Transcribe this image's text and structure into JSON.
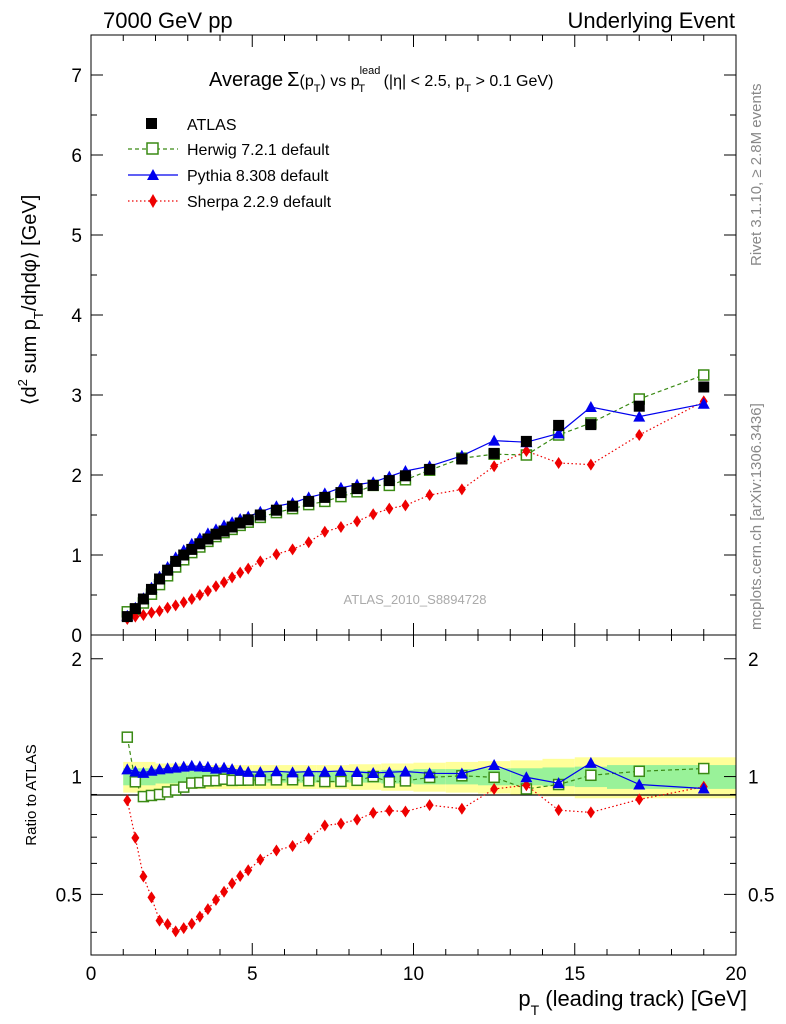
{
  "header": {
    "left": "7000 GeV pp",
    "right": "Underlying Event"
  },
  "side_labels": {
    "rivet": "Rivet 3.1.10, ≥ 2.8M events",
    "mcplots": "mcplots.cern.ch [arXiv:1306.3436]"
  },
  "watermark": "ATLAS_2010_S8894728",
  "title": {
    "prefix": "Average",
    "sigma": "Σ",
    "arg": "(p",
    "arg_sub": "T",
    "arg_close": ")",
    "vs": " vs p",
    "vs_sup": "lead",
    "vs_sub": "T",
    "cuts1": " (|η| < 2.5, p",
    "cuts_sub": "T",
    "cuts2": " > 0.1 GeV)"
  },
  "ylabel_main": {
    "a": "⟨d",
    "sup": "2",
    "b": " sum p",
    "sub": "T",
    "c": "/dηdφ⟩ [GeV]"
  },
  "ylabel_ratio": "Ratio to ATLAS",
  "xlabel": {
    "p": "p",
    "sub": "T",
    "rest": " (leading track) [GeV]"
  },
  "colors": {
    "atlas": "#000000",
    "herwig": "#3a8a14",
    "pythia": "#0000ee",
    "sherpa": "#ee0000",
    "band_inner": "#99f299",
    "band_outer": "#ffff99"
  },
  "chart_data": {
    "type": "scatter",
    "xlabel": "pT (leading track) [GeV]",
    "ylabel": "<d2 sum pT/dηdφ> [GeV]",
    "xlim": [
      0,
      20
    ],
    "ylim_main": [
      0,
      7.5
    ],
    "ylim_ratio": [
      0.35,
      2.3
    ],
    "ratio_scale": "log",
    "x_ticks": [
      "0",
      "5",
      "10",
      "15",
      "20"
    ],
    "y_ticks_main": [
      "0",
      "1",
      "2",
      "3",
      "4",
      "5",
      "6",
      "7"
    ],
    "y_ticks_ratio": [
      "0.5",
      "1",
      "2"
    ],
    "legend_position": "top-left",
    "x": [
      1.125,
      1.375,
      1.625,
      1.875,
      2.125,
      2.375,
      2.625,
      2.875,
      3.125,
      3.375,
      3.625,
      3.875,
      4.125,
      4.375,
      4.625,
      4.875,
      5.25,
      5.75,
      6.25,
      6.75,
      7.25,
      7.75,
      8.25,
      8.75,
      9.25,
      9.75,
      10.5,
      11.5,
      12.5,
      13.5,
      14.5,
      15.5,
      17.0,
      19.0
    ],
    "series": [
      {
        "name": "ATLAS",
        "style": "black filled squares",
        "values": [
          0.23,
          0.33,
          0.45,
          0.57,
          0.7,
          0.81,
          0.92,
          1.0,
          1.07,
          1.14,
          1.2,
          1.26,
          1.3,
          1.35,
          1.4,
          1.44,
          1.5,
          1.56,
          1.61,
          1.67,
          1.72,
          1.78,
          1.83,
          1.87,
          1.93,
          1.99,
          2.07,
          2.2,
          2.27,
          2.42,
          2.62,
          2.63,
          2.86,
          3.1
        ]
      },
      {
        "name": "Herwig 7.2.1 default",
        "style": "green open squares, dashed line",
        "values": [
          0.29,
          0.32,
          0.4,
          0.51,
          0.63,
          0.74,
          0.85,
          0.94,
          1.03,
          1.1,
          1.17,
          1.23,
          1.28,
          1.32,
          1.37,
          1.41,
          1.47,
          1.53,
          1.58,
          1.63,
          1.67,
          1.73,
          1.79,
          1.87,
          1.87,
          1.94,
          2.06,
          2.21,
          2.26,
          2.25,
          2.5,
          2.65,
          2.95,
          3.25
        ]
      },
      {
        "name": "Pythia 8.308 default",
        "style": "blue filled triangles, solid line",
        "values": [
          0.24,
          0.34,
          0.46,
          0.59,
          0.73,
          0.85,
          0.97,
          1.06,
          1.14,
          1.21,
          1.27,
          1.32,
          1.37,
          1.41,
          1.45,
          1.48,
          1.54,
          1.61,
          1.65,
          1.72,
          1.77,
          1.84,
          1.88,
          1.91,
          1.98,
          2.05,
          2.11,
          2.24,
          2.43,
          2.41,
          2.52,
          2.85,
          2.73,
          2.89
        ]
      },
      {
        "name": "Sherpa 2.2.9 default",
        "style": "red filled diamonds, dotted line",
        "values": [
          0.2,
          0.23,
          0.25,
          0.28,
          0.3,
          0.34,
          0.37,
          0.41,
          0.45,
          0.5,
          0.55,
          0.61,
          0.66,
          0.72,
          0.78,
          0.83,
          0.92,
          1.01,
          1.07,
          1.16,
          1.29,
          1.35,
          1.42,
          1.51,
          1.58,
          1.62,
          1.75,
          1.82,
          2.11,
          2.3,
          2.15,
          2.13,
          2.5,
          2.92
        ]
      }
    ],
    "errors_ratio": {
      "x_edges": [
        1,
        2,
        3,
        4,
        5,
        6,
        7,
        8,
        9,
        10,
        11,
        12,
        13,
        14,
        15,
        16,
        18,
        20
      ],
      "inner": [
        0.05,
        0.04,
        0.04,
        0.035,
        0.035,
        0.035,
        0.035,
        0.035,
        0.04,
        0.045,
        0.045,
        0.05,
        0.05,
        0.055,
        0.06,
        0.07,
        0.07
      ],
      "outer": [
        0.09,
        0.08,
        0.07,
        0.07,
        0.07,
        0.07,
        0.07,
        0.075,
        0.08,
        0.085,
        0.09,
        0.095,
        0.1,
        0.11,
        0.12,
        0.12,
        0.12
      ]
    }
  }
}
